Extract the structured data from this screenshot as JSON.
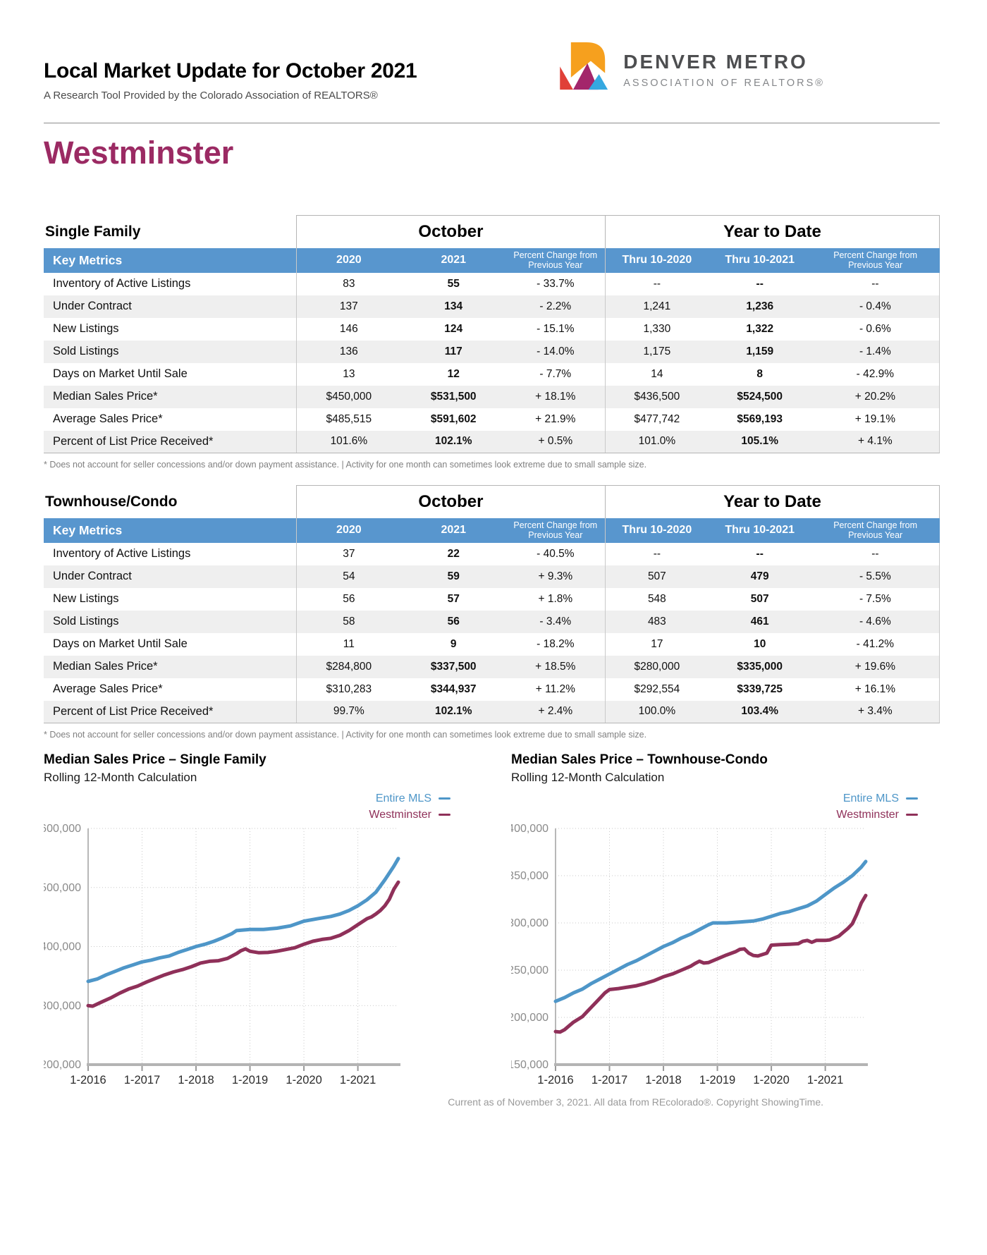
{
  "header": {
    "title": "Local Market Update for October 2021",
    "subtitle": "A Research Tool Provided by the Colorado Association of REALTORS®",
    "logo": {
      "line1": "DENVER METRO",
      "line2": "ASSOCIATION OF REALTORS®"
    }
  },
  "city": "Westminster",
  "footnote": "* Does not account for seller concessions and/or down payment assistance.  |  Activity for one month can sometimes look extreme due to small sample size.",
  "footer": "Current as of November 3, 2021. All data from REcolorado®. Copyright ShowingTime.",
  "colors": {
    "table_header_blue": "#5896ce",
    "city_maroon": "#9b2a63",
    "line_blue": "#4e96c8",
    "line_maroon": "#8f3059",
    "logo_orange": "#f6a01e",
    "logo_red": "#e04038",
    "logo_magenta": "#a3266b",
    "logo_blue": "#35a8e0"
  },
  "tables": [
    {
      "section_label": "Single Family",
      "group_headers": [
        "October",
        "Year to Date"
      ],
      "columns": [
        "Key Metrics",
        "2020",
        "2021",
        "Percent Change from Previous Year",
        "Thru 10-2020",
        "Thru 10-2021",
        "Percent Change from Previous Year"
      ],
      "rows": [
        [
          "Inventory of Active Listings",
          "83",
          "55",
          "- 33.7%",
          "--",
          "--",
          "--"
        ],
        [
          "Under Contract",
          "137",
          "134",
          "- 2.2%",
          "1,241",
          "1,236",
          "- 0.4%"
        ],
        [
          "New Listings",
          "146",
          "124",
          "- 15.1%",
          "1,330",
          "1,322",
          "- 0.6%"
        ],
        [
          "Sold Listings",
          "136",
          "117",
          "- 14.0%",
          "1,175",
          "1,159",
          "- 1.4%"
        ],
        [
          "Days on Market Until Sale",
          "13",
          "12",
          "- 7.7%",
          "14",
          "8",
          "- 42.9%"
        ],
        [
          "Median Sales Price*",
          "$450,000",
          "$531,500",
          "+ 18.1%",
          "$436,500",
          "$524,500",
          "+ 20.2%"
        ],
        [
          "Average Sales Price*",
          "$485,515",
          "$591,602",
          "+ 21.9%",
          "$477,742",
          "$569,193",
          "+ 19.1%"
        ],
        [
          "Percent of List Price Received*",
          "101.6%",
          "102.1%",
          "+ 0.5%",
          "101.0%",
          "105.1%",
          "+ 4.1%"
        ]
      ]
    },
    {
      "section_label": "Townhouse/Condo",
      "group_headers": [
        "October",
        "Year to Date"
      ],
      "columns": [
        "Key Metrics",
        "2020",
        "2021",
        "Percent Change from Previous Year",
        "Thru 10-2020",
        "Thru 10-2021",
        "Percent Change from Previous Year"
      ],
      "rows": [
        [
          "Inventory of Active Listings",
          "37",
          "22",
          "- 40.5%",
          "--",
          "--",
          "--"
        ],
        [
          "Under Contract",
          "54",
          "59",
          "+ 9.3%",
          "507",
          "479",
          "- 5.5%"
        ],
        [
          "New Listings",
          "56",
          "57",
          "+ 1.8%",
          "548",
          "507",
          "- 7.5%"
        ],
        [
          "Sold Listings",
          "58",
          "56",
          "- 3.4%",
          "483",
          "461",
          "- 4.6%"
        ],
        [
          "Days on Market Until Sale",
          "11",
          "9",
          "- 18.2%",
          "17",
          "10",
          "- 41.2%"
        ],
        [
          "Median Sales Price*",
          "$284,800",
          "$337,500",
          "+ 18.5%",
          "$280,000",
          "$335,000",
          "+ 19.6%"
        ],
        [
          "Average Sales Price*",
          "$310,283",
          "$344,937",
          "+ 11.2%",
          "$292,554",
          "$339,725",
          "+ 16.1%"
        ],
        [
          "Percent of List Price Received*",
          "99.7%",
          "102.1%",
          "+ 2.4%",
          "100.0%",
          "103.4%",
          "+ 3.4%"
        ]
      ]
    }
  ],
  "chart_data": [
    {
      "type": "line",
      "title": "Median Sales Price – Single Family",
      "subtitle": "Rolling 12-Month Calculation",
      "legend_position": "top-right",
      "grid": true,
      "ylim": [
        200000,
        600000
      ],
      "y_tick_step": 100000,
      "x_total_months": 69,
      "x_tick_months": [
        0,
        12,
        24,
        36,
        48,
        60
      ],
      "x_tick_labels": [
        "1-2016",
        "1-2017",
        "1-2018",
        "1-2019",
        "1-2020",
        "1-2021"
      ],
      "series": [
        {
          "name": "Entire MLS",
          "color": "#4e96c8",
          "points": [
            [
              0,
              341000
            ],
            [
              2,
              345000
            ],
            [
              4,
              352000
            ],
            [
              6,
              358000
            ],
            [
              8,
              364000
            ],
            [
              10,
              369000
            ],
            [
              12,
              374000
            ],
            [
              14,
              377000
            ],
            [
              16,
              381000
            ],
            [
              18,
              384000
            ],
            [
              20,
              390000
            ],
            [
              22,
              395000
            ],
            [
              24,
              400000
            ],
            [
              26,
              404000
            ],
            [
              28,
              409000
            ],
            [
              30,
              415000
            ],
            [
              32,
              422000
            ],
            [
              33,
              427000
            ],
            [
              36,
              429000
            ],
            [
              39,
              429000
            ],
            [
              42,
              431000
            ],
            [
              45,
              435000
            ],
            [
              48,
              443000
            ],
            [
              51,
              447000
            ],
            [
              54,
              451000
            ],
            [
              56,
              455000
            ],
            [
              58,
              461000
            ],
            [
              60,
              469000
            ],
            [
              62,
              479000
            ],
            [
              64,
              492000
            ],
            [
              66,
              513000
            ],
            [
              68,
              536000
            ],
            [
              69,
              549000
            ]
          ]
        },
        {
          "name": "Westminster",
          "color": "#8f3059",
          "points": [
            [
              0,
              300000
            ],
            [
              1,
              299000
            ],
            [
              3,
              306000
            ],
            [
              5,
              313000
            ],
            [
              7,
              321000
            ],
            [
              9,
              328000
            ],
            [
              11,
              333000
            ],
            [
              13,
              340000
            ],
            [
              15,
              346000
            ],
            [
              17,
              352000
            ],
            [
              19,
              357000
            ],
            [
              21,
              361000
            ],
            [
              23,
              366000
            ],
            [
              25,
              372000
            ],
            [
              27,
              375000
            ],
            [
              29,
              376000
            ],
            [
              31,
              380000
            ],
            [
              33,
              388000
            ],
            [
              34,
              393000
            ],
            [
              35,
              396000
            ],
            [
              36,
              392000
            ],
            [
              38,
              389500
            ],
            [
              40,
              390000
            ],
            [
              42,
              392000
            ],
            [
              44,
              395000
            ],
            [
              46,
              398000
            ],
            [
              48,
              404000
            ],
            [
              50,
              409000
            ],
            [
              52,
              412000
            ],
            [
              54,
              414000
            ],
            [
              56,
              419000
            ],
            [
              58,
              427000
            ],
            [
              60,
              437000
            ],
            [
              62,
              447000
            ],
            [
              63,
              450000
            ],
            [
              64,
              455000
            ],
            [
              65,
              461000
            ],
            [
              66,
              469000
            ],
            [
              67,
              480000
            ],
            [
              68,
              497000
            ],
            [
              69,
              509000
            ]
          ]
        }
      ]
    },
    {
      "type": "line",
      "title": "Median Sales Price – Townhouse-Condo",
      "subtitle": "Rolling 12-Month Calculation",
      "legend_position": "top-right",
      "grid": true,
      "ylim": [
        150000,
        400000
      ],
      "y_tick_step": 50000,
      "x_total_months": 69,
      "x_tick_months": [
        0,
        12,
        24,
        36,
        48,
        60
      ],
      "x_tick_labels": [
        "1-2016",
        "1-2017",
        "1-2018",
        "1-2019",
        "1-2020",
        "1-2021"
      ],
      "series": [
        {
          "name": "Entire MLS",
          "color": "#4e96c8",
          "points": [
            [
              0,
              217000
            ],
            [
              2,
              221000
            ],
            [
              4,
              226000
            ],
            [
              6,
              230000
            ],
            [
              8,
              236000
            ],
            [
              10,
              241000
            ],
            [
              12,
              246000
            ],
            [
              14,
              251000
            ],
            [
              16,
              256000
            ],
            [
              18,
              260000
            ],
            [
              20,
              265000
            ],
            [
              22,
              270000
            ],
            [
              24,
              275000
            ],
            [
              26,
              279000
            ],
            [
              28,
              284000
            ],
            [
              30,
              288000
            ],
            [
              32,
              293000
            ],
            [
              34,
              298000
            ],
            [
              35,
              300000
            ],
            [
              38,
              300000
            ],
            [
              41,
              301000
            ],
            [
              44,
              302000
            ],
            [
              46,
              304000
            ],
            [
              48,
              307000
            ],
            [
              50,
              310000
            ],
            [
              52,
              312000
            ],
            [
              54,
              315000
            ],
            [
              56,
              318000
            ],
            [
              58,
              323000
            ],
            [
              60,
              330000
            ],
            [
              62,
              337000
            ],
            [
              64,
              343000
            ],
            [
              66,
              350000
            ],
            [
              68,
              359000
            ],
            [
              69,
              365000
            ]
          ]
        },
        {
          "name": "Westminster",
          "color": "#8f3059",
          "points": [
            [
              0,
              185000
            ],
            [
              1,
              184500
            ],
            [
              2,
              187000
            ],
            [
              3,
              191000
            ],
            [
              4,
              195000
            ],
            [
              5,
              198000
            ],
            [
              6,
              201000
            ],
            [
              7,
              206000
            ],
            [
              8,
              211000
            ],
            [
              9,
              216000
            ],
            [
              10,
              221000
            ],
            [
              11,
              226000
            ],
            [
              12,
              229500
            ],
            [
              14,
              230500
            ],
            [
              16,
              232000
            ],
            [
              18,
              233500
            ],
            [
              20,
              236000
            ],
            [
              22,
              239000
            ],
            [
              24,
              243000
            ],
            [
              26,
              246000
            ],
            [
              28,
              250000
            ],
            [
              30,
              254000
            ],
            [
              31,
              257000
            ],
            [
              32,
              259500
            ],
            [
              33,
              257500
            ],
            [
              34,
              258000
            ],
            [
              36,
              262000
            ],
            [
              38,
              266000
            ],
            [
              40,
              269500
            ],
            [
              41,
              272000
            ],
            [
              42,
              272500
            ],
            [
              43,
              268000
            ],
            [
              44,
              265500
            ],
            [
              45,
              265000
            ],
            [
              46,
              266500
            ],
            [
              47,
              268000
            ],
            [
              48,
              276500
            ],
            [
              50,
              277000
            ],
            [
              52,
              277500
            ],
            [
              54,
              278000
            ],
            [
              55,
              280500
            ],
            [
              56,
              281500
            ],
            [
              57,
              279500
            ],
            [
              58,
              281500
            ],
            [
              60,
              281500
            ],
            [
              61,
              282000
            ],
            [
              62,
              284000
            ],
            [
              63,
              286000
            ],
            [
              64,
              290000
            ],
            [
              65,
              294000
            ],
            [
              66,
              299000
            ],
            [
              67,
              309000
            ],
            [
              68,
              321000
            ],
            [
              69,
              329000
            ]
          ]
        }
      ]
    }
  ]
}
